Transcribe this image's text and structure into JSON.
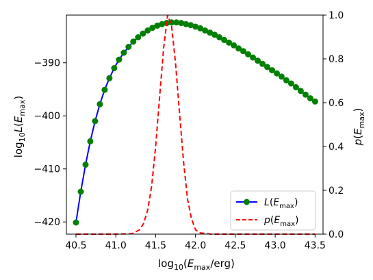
{
  "chart_data": {
    "type": "line",
    "xlabel": "log10(Emax/erg)",
    "ylabel_left": "log10L(Emax)",
    "ylabel_right": "p(Emax)",
    "xlim": [
      40.38,
      43.6
    ],
    "ylim_left": [
      -422.3,
      -381.0
    ],
    "ylim_right": [
      0.0,
      1.0
    ],
    "x_ticks": [
      40.5,
      41.0,
      41.5,
      42.0,
      42.5,
      43.0,
      43.5
    ],
    "x_tick_labels": [
      "40.5",
      "41.0",
      "41.5",
      "42.0",
      "42.5",
      "43.0",
      "43.5"
    ],
    "y_left_ticks": [
      -420,
      -410,
      -400,
      -390
    ],
    "y_left_tick_labels": [
      "−420",
      "−410",
      "−400",
      "−390"
    ],
    "y_right_ticks": [
      0.0,
      0.2,
      0.4,
      0.6,
      0.8,
      1.0
    ],
    "y_right_tick_labels": [
      "0.0",
      "0.2",
      "0.4",
      "0.6",
      "0.8",
      "1.0"
    ],
    "legend_position": "lower-right",
    "grid": false,
    "series": [
      {
        "name": "L(Emax)",
        "axis": "left",
        "color": "#0000ff",
        "marker_color": "#008000",
        "style": "solid-with-markers",
        "x": [
          40.5,
          40.56,
          40.62,
          40.68,
          40.74,
          40.8,
          40.86,
          40.92,
          40.98,
          41.04,
          41.1,
          41.16,
          41.22,
          41.28,
          41.34,
          41.4,
          41.46,
          41.52,
          41.58,
          41.64,
          41.7,
          41.76,
          41.82,
          41.88,
          41.94,
          42.0,
          42.06,
          42.12,
          42.18,
          42.24,
          42.3,
          42.36,
          42.42,
          42.48,
          42.54,
          42.6,
          42.66,
          42.72,
          42.78,
          42.84,
          42.9,
          42.96,
          43.02,
          43.08,
          43.14,
          43.2,
          43.26,
          43.32,
          43.38,
          43.44,
          43.5
        ],
        "y": [
          -420.1,
          -414.3,
          -409.2,
          -404.8,
          -401.0,
          -397.8,
          -395.1,
          -392.9,
          -391.0,
          -389.4,
          -388.1,
          -387.0,
          -386.0,
          -385.2,
          -384.5,
          -383.9,
          -383.4,
          -383.0,
          -382.7,
          -382.5,
          -382.4,
          -382.4,
          -382.5,
          -382.7,
          -382.9,
          -383.2,
          -383.5,
          -383.9,
          -384.3,
          -384.7,
          -385.2,
          -385.7,
          -386.2,
          -386.7,
          -387.3,
          -387.8,
          -388.4,
          -389.0,
          -389.6,
          -390.2,
          -390.8,
          -391.4,
          -392.0,
          -392.6,
          -393.3,
          -393.9,
          -394.6,
          -395.3,
          -396.0,
          -396.7,
          -397.3
        ]
      },
      {
        "name": "p(Emax)",
        "axis": "right",
        "color": "#ff0000",
        "style": "dashed",
        "x": [
          40.5,
          41.0,
          41.2,
          41.3,
          41.35,
          41.4,
          41.45,
          41.5,
          41.55,
          41.6,
          41.65,
          41.7,
          41.75,
          41.8,
          41.85,
          41.9,
          41.95,
          42.0,
          42.05,
          42.2,
          42.5,
          43.0,
          43.5
        ],
        "y": [
          0.0,
          0.0,
          0.002,
          0.02,
          0.05,
          0.11,
          0.22,
          0.4,
          0.63,
          0.85,
          1.0,
          0.95,
          0.78,
          0.55,
          0.33,
          0.16,
          0.07,
          0.02,
          0.006,
          0.0,
          0.0,
          0.0,
          0.0
        ]
      }
    ]
  }
}
